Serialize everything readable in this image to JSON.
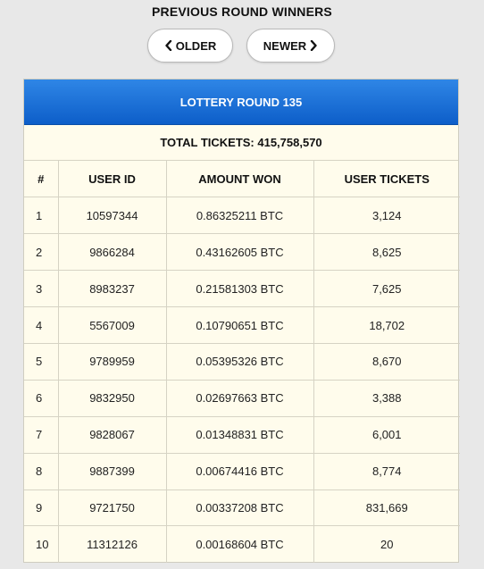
{
  "title": "PREVIOUS ROUND WINNERS",
  "nav": {
    "older_label": "OLDER",
    "newer_label": "NEWER",
    "older_icon": "chevron-left-icon",
    "newer_icon": "chevron-right-icon"
  },
  "round": {
    "header": "LOTTERY ROUND 135",
    "total_tickets": "TOTAL TICKETS: 415,758,570"
  },
  "table": {
    "columns": [
      "#",
      "USER ID",
      "AMOUNT WON",
      "USER TICKETS"
    ],
    "rows": [
      {
        "rank": "1",
        "user_id": "10597344",
        "amount": "0.86325211 BTC",
        "tickets": "3,124"
      },
      {
        "rank": "2",
        "user_id": "9866284",
        "amount": "0.43162605 BTC",
        "tickets": "8,625"
      },
      {
        "rank": "3",
        "user_id": "8983237",
        "amount": "0.21581303 BTC",
        "tickets": "7,625"
      },
      {
        "rank": "4",
        "user_id": "5567009",
        "amount": "0.10790651 BTC",
        "tickets": "18,702"
      },
      {
        "rank": "5",
        "user_id": "9789959",
        "amount": "0.05395326 BTC",
        "tickets": "8,670"
      },
      {
        "rank": "6",
        "user_id": "9832950",
        "amount": "0.02697663 BTC",
        "tickets": "3,388"
      },
      {
        "rank": "7",
        "user_id": "9828067",
        "amount": "0.01348831 BTC",
        "tickets": "6,001"
      },
      {
        "rank": "8",
        "user_id": "9887399",
        "amount": "0.00674416 BTC",
        "tickets": "8,774"
      },
      {
        "rank": "9",
        "user_id": "9721750",
        "amount": "0.00337208 BTC",
        "tickets": "831,669"
      },
      {
        "rank": "10",
        "user_id": "11312126",
        "amount": "0.00168604 BTC",
        "tickets": "20"
      }
    ]
  },
  "colors": {
    "header_blue": "#1a6fd6",
    "panel_bg": "#fffcec",
    "page_bg": "#e8e8e8"
  }
}
